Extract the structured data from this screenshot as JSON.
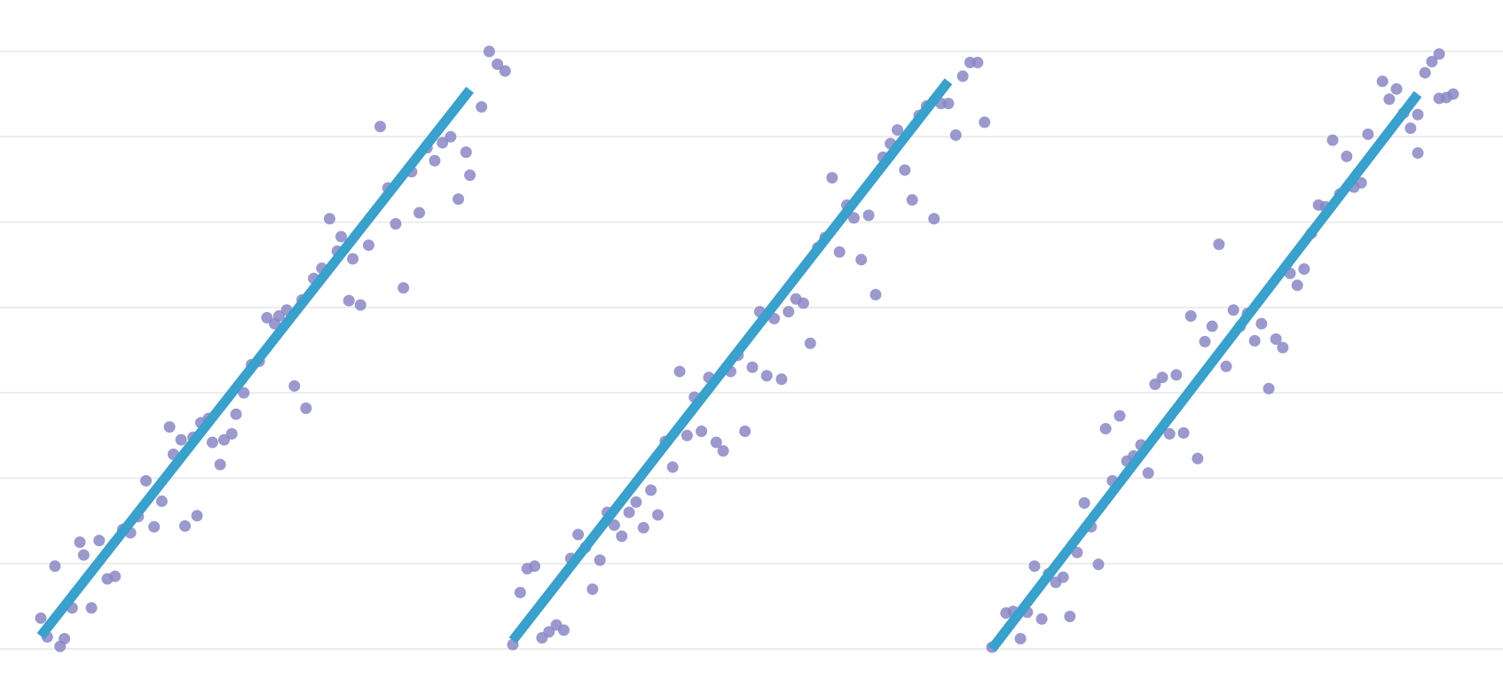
{
  "chart_data": {
    "type": "scatter",
    "title": "",
    "xlabel": "",
    "ylabel": "",
    "grid": true,
    "ylim": [
      0,
      7
    ],
    "colors": {
      "points": "#8a87c4",
      "fit_line": "#3aa0cc",
      "grid": "#ececec"
    },
    "panels": [
      {
        "fit_line": [
          [
            0.0,
            0.15
          ],
          [
            10.0,
            6.55
          ]
        ],
        "points": [
          [
            0.0,
            0.36
          ],
          [
            0.15,
            0.14
          ],
          [
            0.33,
            0.97
          ],
          [
            0.45,
            0.03
          ],
          [
            0.55,
            0.12
          ],
          [
            0.73,
            0.48
          ],
          [
            0.91,
            1.25
          ],
          [
            1.0,
            1.1
          ],
          [
            1.18,
            0.48
          ],
          [
            1.36,
            1.27
          ],
          [
            1.55,
            0.82
          ],
          [
            1.73,
            0.85
          ],
          [
            1.91,
            1.4
          ],
          [
            2.09,
            1.36
          ],
          [
            2.27,
            1.55
          ],
          [
            2.45,
            1.97
          ],
          [
            2.64,
            1.43
          ],
          [
            2.82,
            1.73
          ],
          [
            3.0,
            2.6
          ],
          [
            3.09,
            2.28
          ],
          [
            3.27,
            2.45
          ],
          [
            3.36,
            1.44
          ],
          [
            3.55,
            2.48
          ],
          [
            3.64,
            1.56
          ],
          [
            3.73,
            2.65
          ],
          [
            3.91,
            2.7
          ],
          [
            4.0,
            2.42
          ],
          [
            4.18,
            2.16
          ],
          [
            4.27,
            2.45
          ],
          [
            4.45,
            2.52
          ],
          [
            4.55,
            2.75
          ],
          [
            4.73,
            3.0
          ],
          [
            4.91,
            3.33
          ],
          [
            5.09,
            3.37
          ],
          [
            5.27,
            3.88
          ],
          [
            5.45,
            3.81
          ],
          [
            5.55,
            3.9
          ],
          [
            5.73,
            3.97
          ],
          [
            5.91,
            3.08
          ],
          [
            6.09,
            4.09
          ],
          [
            6.18,
            2.82
          ],
          [
            6.36,
            4.34
          ],
          [
            6.55,
            4.46
          ],
          [
            6.73,
            5.04
          ],
          [
            6.91,
            4.66
          ],
          [
            7.0,
            4.83
          ],
          [
            7.18,
            4.08
          ],
          [
            7.27,
            4.57
          ],
          [
            7.45,
            4.03
          ],
          [
            7.64,
            4.73
          ],
          [
            7.91,
            6.12
          ],
          [
            8.09,
            5.4
          ],
          [
            8.27,
            4.98
          ],
          [
            8.45,
            4.23
          ],
          [
            8.64,
            5.59
          ],
          [
            8.82,
            5.11
          ],
          [
            9.0,
            5.87
          ],
          [
            9.18,
            5.72
          ],
          [
            9.36,
            5.93
          ],
          [
            9.55,
            6.0
          ],
          [
            9.73,
            5.27
          ],
          [
            9.91,
            5.82
          ],
          [
            10.0,
            5.55
          ],
          [
            10.27,
            6.35
          ],
          [
            10.45,
            7.0
          ],
          [
            10.64,
            6.85
          ],
          [
            10.82,
            6.77
          ]
        ]
      },
      {
        "fit_line": [
          [
            0.0,
            0.1
          ],
          [
            10.0,
            6.65
          ]
        ],
        "points": [
          [
            0.0,
            0.05
          ],
          [
            0.17,
            0.66
          ],
          [
            0.33,
            0.94
          ],
          [
            0.5,
            0.97
          ],
          [
            0.67,
            0.13
          ],
          [
            0.83,
            0.2
          ],
          [
            1.0,
            0.28
          ],
          [
            1.17,
            0.22
          ],
          [
            1.33,
            1.06
          ],
          [
            1.5,
            1.34
          ],
          [
            1.67,
            1.19
          ],
          [
            1.83,
            0.7
          ],
          [
            2.0,
            1.04
          ],
          [
            2.17,
            1.6
          ],
          [
            2.33,
            1.45
          ],
          [
            2.5,
            1.32
          ],
          [
            2.67,
            1.6
          ],
          [
            2.83,
            1.72
          ],
          [
            3.0,
            1.42
          ],
          [
            3.17,
            1.86
          ],
          [
            3.33,
            1.57
          ],
          [
            3.5,
            2.43
          ],
          [
            3.67,
            2.13
          ],
          [
            3.83,
            3.25
          ],
          [
            4.0,
            2.5
          ],
          [
            4.17,
            2.95
          ],
          [
            4.33,
            2.55
          ],
          [
            4.5,
            3.18
          ],
          [
            4.67,
            2.42
          ],
          [
            4.83,
            2.32
          ],
          [
            5.0,
            3.25
          ],
          [
            5.17,
            3.44
          ],
          [
            5.33,
            2.55
          ],
          [
            5.5,
            3.3
          ],
          [
            5.67,
            3.95
          ],
          [
            5.83,
            3.2
          ],
          [
            6.0,
            3.87
          ],
          [
            6.17,
            3.16
          ],
          [
            6.33,
            3.95
          ],
          [
            6.5,
            4.1
          ],
          [
            6.67,
            4.05
          ],
          [
            6.83,
            3.58
          ],
          [
            7.0,
            4.7
          ],
          [
            7.17,
            4.82
          ],
          [
            7.33,
            5.52
          ],
          [
            7.5,
            4.65
          ],
          [
            7.67,
            5.2
          ],
          [
            7.83,
            5.05
          ],
          [
            8.0,
            4.56
          ],
          [
            8.17,
            5.08
          ],
          [
            8.33,
            4.15
          ],
          [
            8.5,
            5.76
          ],
          [
            8.67,
            5.92
          ],
          [
            8.83,
            6.08
          ],
          [
            9.0,
            5.61
          ],
          [
            9.17,
            5.26
          ],
          [
            9.33,
            6.25
          ],
          [
            9.5,
            6.36
          ],
          [
            9.67,
            5.04
          ],
          [
            9.83,
            6.39
          ],
          [
            10.0,
            6.39
          ],
          [
            10.17,
            6.02
          ],
          [
            10.33,
            6.71
          ],
          [
            10.5,
            6.87
          ],
          [
            10.67,
            6.87
          ],
          [
            10.83,
            6.17
          ]
        ]
      },
      {
        "fit_line": [
          [
            0.0,
            0.0
          ],
          [
            10.0,
            6.5
          ]
        ],
        "points": [
          [
            0.0,
            0.02
          ],
          [
            0.33,
            0.42
          ],
          [
            0.5,
            0.44
          ],
          [
            0.67,
            0.12
          ],
          [
            0.83,
            0.43
          ],
          [
            1.0,
            0.97
          ],
          [
            1.17,
            0.35
          ],
          [
            1.33,
            0.88
          ],
          [
            1.5,
            0.78
          ],
          [
            1.67,
            0.84
          ],
          [
            1.83,
            0.38
          ],
          [
            2.0,
            1.13
          ],
          [
            2.17,
            1.71
          ],
          [
            2.33,
            1.43
          ],
          [
            2.5,
            0.99
          ],
          [
            2.67,
            2.58
          ],
          [
            2.83,
            1.97
          ],
          [
            3.0,
            2.73
          ],
          [
            3.17,
            2.2
          ],
          [
            3.33,
            2.26
          ],
          [
            3.5,
            2.39
          ],
          [
            3.67,
            2.06
          ],
          [
            3.83,
            3.1
          ],
          [
            4.0,
            3.18
          ],
          [
            4.17,
            2.52
          ],
          [
            4.33,
            3.21
          ],
          [
            4.5,
            2.53
          ],
          [
            4.67,
            3.9
          ],
          [
            4.83,
            2.23
          ],
          [
            5.0,
            3.6
          ],
          [
            5.17,
            3.78
          ],
          [
            5.33,
            4.74
          ],
          [
            5.5,
            3.31
          ],
          [
            5.67,
            3.97
          ],
          [
            5.83,
            3.78
          ],
          [
            6.0,
            3.93
          ],
          [
            6.17,
            3.61
          ],
          [
            6.33,
            3.81
          ],
          [
            6.5,
            3.05
          ],
          [
            6.67,
            3.63
          ],
          [
            6.83,
            3.53
          ],
          [
            7.0,
            4.4
          ],
          [
            7.17,
            4.26
          ],
          [
            7.33,
            4.45
          ],
          [
            7.5,
            4.87
          ],
          [
            7.67,
            5.2
          ],
          [
            7.83,
            5.18
          ],
          [
            8.0,
            5.96
          ],
          [
            8.17,
            5.33
          ],
          [
            8.33,
            5.77
          ],
          [
            8.5,
            5.41
          ],
          [
            8.67,
            5.46
          ],
          [
            8.83,
            6.03
          ],
          [
            9.17,
            6.65
          ],
          [
            9.33,
            6.44
          ],
          [
            9.67,
            6.28
          ],
          [
            9.83,
            6.1
          ],
          [
            10.0,
            5.81
          ],
          [
            10.17,
            6.75
          ],
          [
            10.33,
            6.88
          ],
          [
            10.5,
            6.45
          ],
          [
            10.5,
            6.97
          ],
          [
            10.67,
            6.46
          ],
          [
            10.83,
            6.5
          ],
          [
            10.0,
            6.26
          ],
          [
            9.5,
            6.56
          ]
        ]
      }
    ]
  }
}
